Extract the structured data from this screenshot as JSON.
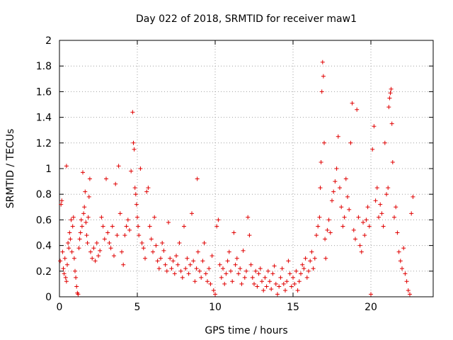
{
  "chart_data": {
    "type": "scatter",
    "title": "Day 022 of 2018, SRMTID for receiver maw1",
    "xlabel": "GPS time / hours",
    "ylabel": "SRMTID / TECUs",
    "xlim": [
      0,
      24
    ],
    "ylim": [
      0,
      2
    ],
    "x_ticks": [
      0,
      5,
      10,
      15,
      20
    ],
    "y_ticks": [
      0,
      0.2,
      0.4,
      0.6,
      0.8,
      1,
      1.2,
      1.4,
      1.6,
      1.8,
      2
    ],
    "x_tick_labels": [
      "0",
      "5",
      "10",
      "15",
      "20"
    ],
    "y_tick_labels": [
      "0",
      "0.2",
      "0.4",
      "0.6",
      "0.8",
      "1",
      "1.2",
      "1.4",
      "1.6",
      "1.8",
      "2"
    ],
    "grid": true,
    "marker": "+",
    "color": "#e00000",
    "series": [
      {
        "name": "SRMTID",
        "points": [
          [
            0.05,
            0.28
          ],
          [
            0.1,
            0.72
          ],
          [
            0.15,
            0.75
          ],
          [
            0.2,
            0.35
          ],
          [
            0.25,
            0.22
          ],
          [
            0.3,
            0.18
          ],
          [
            0.35,
            0.3
          ],
          [
            0.4,
            0.15
          ],
          [
            0.45,
            0.12
          ],
          [
            0.5,
            0.25
          ],
          [
            0.45,
            1.02
          ],
          [
            0.55,
            0.42
          ],
          [
            0.6,
            0.38
          ],
          [
            0.65,
            0.5
          ],
          [
            0.7,
            0.45
          ],
          [
            0.75,
            0.6
          ],
          [
            0.8,
            0.35
          ],
          [
            0.85,
            0.55
          ],
          [
            0.9,
            0.62
          ],
          [
            0.95,
            0.3
          ],
          [
            1.0,
            0.2
          ],
          [
            1.05,
            0.15
          ],
          [
            1.1,
            0.08
          ],
          [
            1.15,
            0.03
          ],
          [
            1.2,
            0.02
          ],
          [
            1.25,
            0.38
          ],
          [
            1.3,
            0.45
          ],
          [
            1.35,
            0.5
          ],
          [
            1.4,
            0.6
          ],
          [
            1.45,
            0.55
          ],
          [
            1.5,
            0.97
          ],
          [
            1.55,
            0.65
          ],
          [
            1.6,
            0.7
          ],
          [
            1.65,
            0.82
          ],
          [
            1.7,
            0.58
          ],
          [
            1.75,
            0.48
          ],
          [
            1.8,
            0.42
          ],
          [
            1.85,
            0.62
          ],
          [
            1.9,
            0.78
          ],
          [
            1.95,
            0.92
          ],
          [
            2.0,
            0.35
          ],
          [
            2.1,
            0.3
          ],
          [
            2.2,
            0.38
          ],
          [
            2.3,
            0.28
          ],
          [
            2.4,
            0.42
          ],
          [
            2.5,
            0.32
          ],
          [
            2.6,
            0.36
          ],
          [
            2.7,
            0.62
          ],
          [
            2.8,
            0.55
          ],
          [
            2.9,
            0.45
          ],
          [
            3.0,
            0.92
          ],
          [
            3.1,
            0.5
          ],
          [
            3.2,
            0.42
          ],
          [
            3.3,
            0.38
          ],
          [
            3.4,
            0.55
          ],
          [
            3.5,
            0.32
          ],
          [
            3.6,
            0.88
          ],
          [
            3.7,
            0.48
          ],
          [
            3.8,
            1.02
          ],
          [
            3.9,
            0.65
          ],
          [
            4.0,
            0.35
          ],
          [
            4.1,
            0.25
          ],
          [
            4.2,
            0.48
          ],
          [
            4.3,
            0.55
          ],
          [
            4.4,
            0.6
          ],
          [
            4.5,
            0.52
          ],
          [
            4.6,
            0.98
          ],
          [
            4.7,
            1.44
          ],
          [
            4.75,
            1.2
          ],
          [
            4.8,
            1.15
          ],
          [
            4.85,
            0.85
          ],
          [
            4.9,
            0.8
          ],
          [
            4.95,
            0.72
          ],
          [
            5.0,
            0.62
          ],
          [
            5.05,
            0.55
          ],
          [
            5.1,
            0.48
          ],
          [
            5.2,
            1.0
          ],
          [
            5.3,
            0.42
          ],
          [
            5.4,
            0.38
          ],
          [
            5.5,
            0.3
          ],
          [
            5.6,
            0.82
          ],
          [
            5.7,
            0.85
          ],
          [
            5.8,
            0.55
          ],
          [
            5.9,
            0.45
          ],
          [
            6.0,
            0.35
          ],
          [
            6.1,
            0.62
          ],
          [
            6.2,
            0.4
          ],
          [
            6.3,
            0.28
          ],
          [
            6.4,
            0.22
          ],
          [
            6.5,
            0.3
          ],
          [
            6.6,
            0.42
          ],
          [
            6.7,
            0.36
          ],
          [
            6.8,
            0.25
          ],
          [
            6.9,
            0.2
          ],
          [
            7.0,
            0.58
          ],
          [
            7.1,
            0.3
          ],
          [
            7.2,
            0.22
          ],
          [
            7.3,
            0.28
          ],
          [
            7.4,
            0.18
          ],
          [
            7.5,
            0.32
          ],
          [
            7.6,
            0.25
          ],
          [
            7.7,
            0.42
          ],
          [
            7.8,
            0.2
          ],
          [
            7.9,
            0.15
          ],
          [
            8.0,
            0.55
          ],
          [
            8.1,
            0.22
          ],
          [
            8.2,
            0.3
          ],
          [
            8.3,
            0.18
          ],
          [
            8.4,
            0.25
          ],
          [
            8.5,
            0.65
          ],
          [
            8.6,
            0.28
          ],
          [
            8.7,
            0.12
          ],
          [
            8.8,
            0.22
          ],
          [
            8.85,
            0.92
          ],
          [
            8.9,
            0.35
          ],
          [
            9.0,
            0.2
          ],
          [
            9.1,
            0.15
          ],
          [
            9.2,
            0.28
          ],
          [
            9.3,
            0.42
          ],
          [
            9.4,
            0.18
          ],
          [
            9.5,
            0.12
          ],
          [
            9.6,
            0.22
          ],
          [
            9.7,
            0.1
          ],
          [
            9.8,
            0.32
          ],
          [
            9.9,
            0.05
          ],
          [
            10.0,
            0.02
          ],
          [
            10.1,
            0.55
          ],
          [
            10.2,
            0.6
          ],
          [
            10.3,
            0.25
          ],
          [
            10.4,
            0.15
          ],
          [
            10.5,
            0.22
          ],
          [
            10.6,
            0.1
          ],
          [
            10.7,
            0.18
          ],
          [
            10.8,
            0.28
          ],
          [
            10.9,
            0.35
          ],
          [
            11.0,
            0.2
          ],
          [
            11.1,
            0.12
          ],
          [
            11.2,
            0.5
          ],
          [
            11.3,
            0.25
          ],
          [
            11.4,
            0.3
          ],
          [
            11.5,
            0.18
          ],
          [
            11.6,
            0.22
          ],
          [
            11.7,
            0.1
          ],
          [
            11.8,
            0.36
          ],
          [
            11.9,
            0.15
          ],
          [
            12.0,
            0.2
          ],
          [
            12.1,
            0.62
          ],
          [
            12.2,
            0.48
          ],
          [
            12.3,
            0.25
          ],
          [
            12.4,
            0.15
          ],
          [
            12.5,
            0.1
          ],
          [
            12.6,
            0.2
          ],
          [
            12.7,
            0.08
          ],
          [
            12.8,
            0.18
          ],
          [
            12.9,
            0.22
          ],
          [
            13.0,
            0.12
          ],
          [
            13.1,
            0.05
          ],
          [
            13.2,
            0.15
          ],
          [
            13.3,
            0.08
          ],
          [
            13.4,
            0.2
          ],
          [
            13.5,
            0.12
          ],
          [
            13.6,
            0.06
          ],
          [
            13.7,
            0.18
          ],
          [
            13.8,
            0.24
          ],
          [
            13.9,
            0.1
          ],
          [
            14.0,
            0.02
          ],
          [
            14.1,
            0.08
          ],
          [
            14.2,
            0.15
          ],
          [
            14.3,
            0.22
          ],
          [
            14.4,
            0.1
          ],
          [
            14.5,
            0.05
          ],
          [
            14.6,
            0.12
          ],
          [
            14.7,
            0.28
          ],
          [
            14.8,
            0.18
          ],
          [
            14.9,
            0.08
          ],
          [
            15.0,
            0.15
          ],
          [
            15.1,
            0.1
          ],
          [
            15.2,
            0.2
          ],
          [
            15.3,
            0.05
          ],
          [
            15.4,
            0.12
          ],
          [
            15.5,
            0.18
          ],
          [
            15.6,
            0.25
          ],
          [
            15.7,
            0.22
          ],
          [
            15.8,
            0.3
          ],
          [
            15.9,
            0.15
          ],
          [
            16.0,
            0.2
          ],
          [
            16.1,
            0.28
          ],
          [
            16.2,
            0.35
          ],
          [
            16.3,
            0.22
          ],
          [
            16.4,
            0.3
          ],
          [
            16.5,
            0.48
          ],
          [
            16.6,
            0.55
          ],
          [
            16.7,
            0.62
          ],
          [
            16.75,
            0.85
          ],
          [
            16.8,
            1.05
          ],
          [
            16.85,
            1.6
          ],
          [
            16.9,
            1.83
          ],
          [
            16.95,
            1.72
          ],
          [
            17.0,
            1.2
          ],
          [
            17.05,
            0.45
          ],
          [
            17.1,
            0.3
          ],
          [
            17.2,
            0.52
          ],
          [
            17.3,
            0.6
          ],
          [
            17.4,
            0.5
          ],
          [
            17.5,
            0.75
          ],
          [
            17.6,
            0.82
          ],
          [
            17.7,
            0.9
          ],
          [
            17.8,
            1.0
          ],
          [
            17.9,
            1.25
          ],
          [
            18.0,
            0.85
          ],
          [
            18.1,
            0.7
          ],
          [
            18.2,
            0.55
          ],
          [
            18.3,
            0.62
          ],
          [
            18.4,
            0.92
          ],
          [
            18.5,
            0.78
          ],
          [
            18.6,
            0.68
          ],
          [
            18.7,
            1.2
          ],
          [
            18.8,
            1.51
          ],
          [
            18.9,
            0.52
          ],
          [
            19.0,
            0.45
          ],
          [
            19.1,
            1.46
          ],
          [
            19.2,
            0.62
          ],
          [
            19.3,
            0.4
          ],
          [
            19.4,
            0.35
          ],
          [
            19.5,
            0.58
          ],
          [
            19.6,
            0.48
          ],
          [
            19.7,
            0.6
          ],
          [
            19.8,
            0.7
          ],
          [
            19.9,
            0.55
          ],
          [
            20.0,
            0.02
          ],
          [
            20.1,
            1.15
          ],
          [
            20.2,
            1.33
          ],
          [
            20.3,
            0.75
          ],
          [
            20.4,
            0.85
          ],
          [
            20.5,
            0.62
          ],
          [
            20.6,
            0.72
          ],
          [
            20.7,
            0.65
          ],
          [
            20.8,
            0.55
          ],
          [
            20.9,
            1.2
          ],
          [
            21.0,
            0.8
          ],
          [
            21.1,
            0.85
          ],
          [
            21.15,
            1.48
          ],
          [
            21.2,
            1.55
          ],
          [
            21.25,
            1.59
          ],
          [
            21.3,
            1.62
          ],
          [
            21.35,
            1.35
          ],
          [
            21.4,
            1.05
          ],
          [
            21.5,
            0.62
          ],
          [
            21.6,
            0.7
          ],
          [
            21.7,
            0.5
          ],
          [
            21.8,
            0.35
          ],
          [
            21.9,
            0.28
          ],
          [
            22.0,
            0.22
          ],
          [
            22.1,
            0.38
          ],
          [
            22.2,
            0.18
          ],
          [
            22.3,
            0.12
          ],
          [
            22.4,
            0.05
          ],
          [
            22.5,
            0.02
          ],
          [
            22.6,
            0.65
          ],
          [
            22.7,
            0.78
          ]
        ]
      }
    ]
  }
}
